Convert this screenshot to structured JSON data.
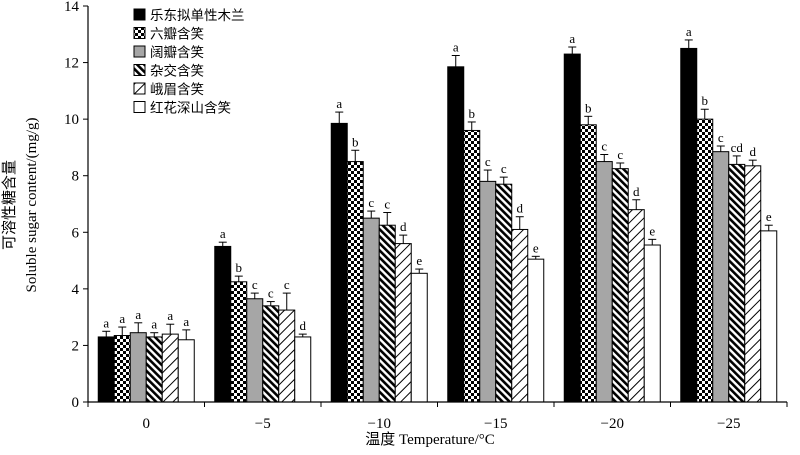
{
  "chart_data": {
    "type": "bar",
    "xlabel": "温度 Temperature/°C",
    "ylabel_cn": "可溶性糖含量",
    "ylabel_en": "Soluble sugar content/(mg/g)",
    "ylim": [
      0,
      14
    ],
    "yticks": [
      0,
      2,
      4,
      6,
      8,
      10,
      12,
      14
    ],
    "categories": [
      "0",
      "−5",
      "−10",
      "−15",
      "−20",
      "−25"
    ],
    "legend_position": "top-left",
    "grid": false,
    "series": [
      {
        "name": "乐东拟单性木兰",
        "pattern": "solid-black",
        "values": [
          2.3,
          5.5,
          9.85,
          11.85,
          12.3,
          12.5
        ],
        "errors": [
          0.2,
          0.15,
          0.4,
          0.4,
          0.25,
          0.3
        ],
        "labels": [
          "a",
          "a",
          "a",
          "a",
          "a",
          "a"
        ]
      },
      {
        "name": "六瓣含笑",
        "pattern": "checker",
        "values": [
          2.35,
          4.25,
          8.5,
          9.6,
          9.8,
          10.0
        ],
        "errors": [
          0.3,
          0.2,
          0.4,
          0.3,
          0.3,
          0.35
        ],
        "labels": [
          "a",
          "b",
          "b",
          "b",
          "b",
          "b"
        ]
      },
      {
        "name": "阔瓣含笑",
        "pattern": "gray",
        "values": [
          2.45,
          3.65,
          6.5,
          7.8,
          8.5,
          8.85
        ],
        "errors": [
          0.35,
          0.2,
          0.25,
          0.4,
          0.25,
          0.2
        ],
        "labels": [
          "a",
          "c",
          "c",
          "c",
          "c",
          "c"
        ]
      },
      {
        "name": "杂交含笑",
        "pattern": "dense-diagonal",
        "values": [
          2.3,
          3.4,
          6.25,
          7.7,
          8.25,
          8.4
        ],
        "errors": [
          0.15,
          0.15,
          0.45,
          0.25,
          0.2,
          0.3
        ],
        "labels": [
          "a",
          "c",
          "c",
          "c",
          "c",
          "cd"
        ]
      },
      {
        "name": "峨眉含笑",
        "pattern": "sparse-diagonal",
        "values": [
          2.4,
          3.25,
          5.6,
          6.1,
          6.8,
          8.35
        ],
        "errors": [
          0.35,
          0.6,
          0.3,
          0.45,
          0.35,
          0.2
        ],
        "labels": [
          "a",
          "c",
          "d",
          "d",
          "d",
          "d"
        ]
      },
      {
        "name": "红花深山含笑",
        "pattern": "white",
        "values": [
          2.2,
          2.3,
          4.55,
          5.05,
          5.55,
          6.05
        ],
        "errors": [
          0.35,
          0.1,
          0.15,
          0.1,
          0.2,
          0.2
        ],
        "labels": [
          "a",
          "d",
          "e",
          "e",
          "e",
          "e"
        ]
      }
    ]
  }
}
